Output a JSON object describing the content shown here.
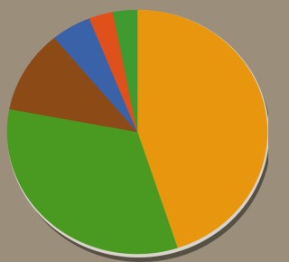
{
  "chart_data": {
    "type": "pie",
    "values": [
      45,
      33,
      11,
      5,
      3,
      3
    ],
    "colors": [
      "#e8960e",
      "#4a9a22",
      "#8c4a16",
      "#3a62a8",
      "#e0501a",
      "#3f9a30"
    ],
    "start_angle": 0,
    "direction": "clockwise"
  }
}
